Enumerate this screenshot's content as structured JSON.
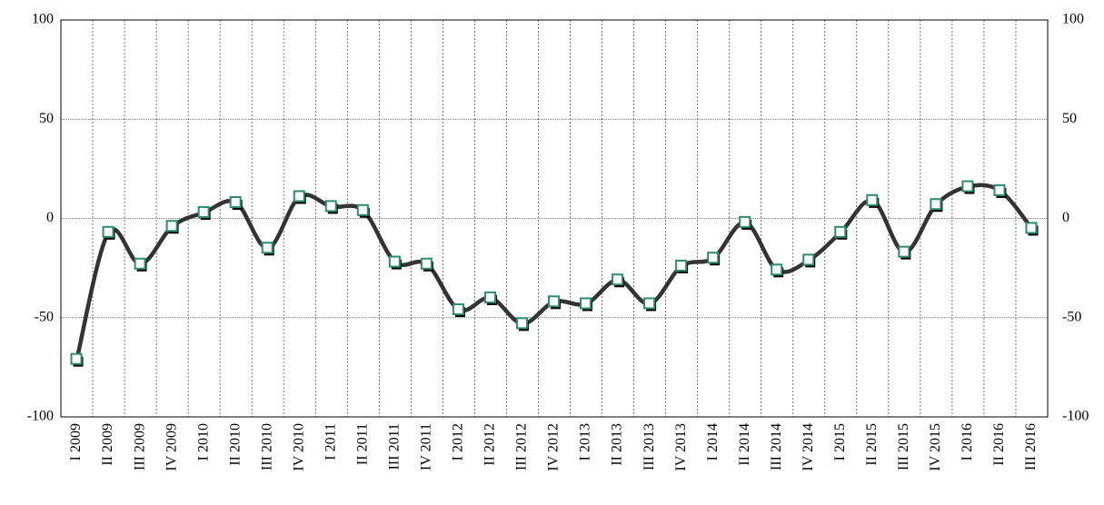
{
  "chart_data": {
    "type": "line",
    "categories": [
      "I 2009",
      "II 2009",
      "III 2009",
      "IV 2009",
      "I 2010",
      "II 2010",
      "III 2010",
      "IV 2010",
      "I 2011",
      "II 2011",
      "III 2011",
      "IV 2011",
      "I 2012",
      "II 2012",
      "III 2012",
      "IV 2012",
      "I 2013",
      "II 2013",
      "III 2013",
      "IV 2013",
      "I 2014",
      "II 2014",
      "III 2014",
      "IV 2014",
      "I 2015",
      "II 2015",
      "III 2015",
      "IV 2015",
      "I 2016",
      "II 2016",
      "III 2016"
    ],
    "values": [
      -71,
      -7,
      -23,
      -4,
      3,
      8,
      -15,
      11,
      6,
      4,
      -22,
      -23,
      -46,
      -40,
      -53,
      -42,
      -43,
      -31,
      -43,
      -24,
      -20,
      -2,
      -26,
      -21,
      -7,
      9,
      -17,
      7,
      16,
      14,
      -5
    ],
    "color": "#333333",
    "marker_edge_color": "#2e8b6b",
    "ylim": [
      -100,
      100
    ],
    "yticks": [
      -100,
      -50,
      0,
      50,
      100
    ],
    "y2lim": [
      -100,
      100
    ],
    "y2ticks": [
      -100,
      -50,
      0,
      50,
      100
    ],
    "grid": true
  }
}
